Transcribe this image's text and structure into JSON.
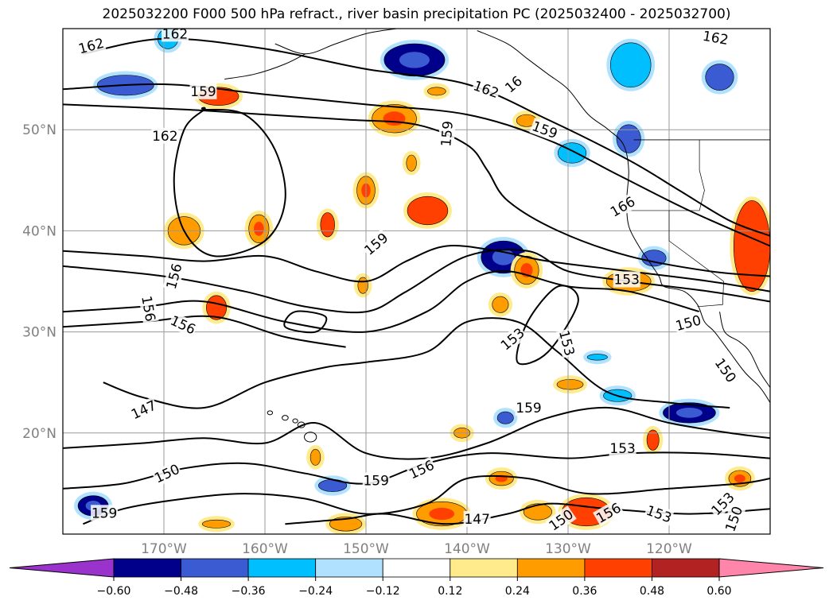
{
  "title": "2025032200 F000 500 hPa refract., river basin precipitation PC (2025032400 - 2025032700)",
  "map": {
    "lat_range": [
      10,
      60
    ],
    "lon_range": [
      -180,
      -110
    ],
    "lat_ticks": [
      {
        "value": 20,
        "label": "20°N"
      },
      {
        "value": 30,
        "label": "30°N"
      },
      {
        "value": 40,
        "label": "40°N"
      },
      {
        "value": 50,
        "label": "50°N"
      }
    ],
    "lon_ticks": [
      {
        "value": -170,
        "label": "170°W"
      },
      {
        "value": -160,
        "label": "160°W"
      },
      {
        "value": -150,
        "label": "150°W"
      },
      {
        "value": -140,
        "label": "140°W"
      },
      {
        "value": -130,
        "label": "130°W"
      },
      {
        "value": -120,
        "label": "120°W"
      }
    ],
    "grid": true,
    "contour_levels": [
      147,
      150,
      153,
      156,
      159,
      162
    ],
    "contour_labels": [
      {
        "text": "162",
        "lon": -177.2,
        "lat": 58.3,
        "rot": -15
      },
      {
        "text": "162",
        "lon": -168.9,
        "lat": 59.5,
        "rot": 0
      },
      {
        "text": "162",
        "lon": -169.9,
        "lat": 49.4,
        "rot": 0
      },
      {
        "text": "159",
        "lon": -166.1,
        "lat": 53.8,
        "rot": 0
      },
      {
        "text": "162",
        "lon": -138.1,
        "lat": 54.0,
        "rot": 20
      },
      {
        "text": "16",
        "lon": -135.4,
        "lat": 54.5,
        "rot": -40
      },
      {
        "text": "159",
        "lon": -132.3,
        "lat": 50.0,
        "rot": 20
      },
      {
        "text": "159",
        "lon": -142.0,
        "lat": 49.6,
        "rot": -85
      },
      {
        "text": "162",
        "lon": -115.4,
        "lat": 59.1,
        "rot": 10
      },
      {
        "text": "159",
        "lon": -149.0,
        "lat": 38.7,
        "rot": -40
      },
      {
        "text": "166",
        "lon": -124.6,
        "lat": 42.4,
        "rot": -30
      },
      {
        "text": "153",
        "lon": -124.2,
        "lat": 35.2,
        "rot": 0
      },
      {
        "text": "156",
        "lon": -169.0,
        "lat": 35.5,
        "rot": -75
      },
      {
        "text": "156",
        "lon": -171.5,
        "lat": 32.3,
        "rot": 80
      },
      {
        "text": "156",
        "lon": -168.1,
        "lat": 30.7,
        "rot": 25
      },
      {
        "text": "150",
        "lon": -118.1,
        "lat": 30.9,
        "rot": -15
      },
      {
        "text": "153",
        "lon": -135.5,
        "lat": 29.3,
        "rot": -40
      },
      {
        "text": "153",
        "lon": -130.1,
        "lat": 28.9,
        "rot": 75
      },
      {
        "text": "150",
        "lon": -114.4,
        "lat": 26.2,
        "rot": 55
      },
      {
        "text": "147",
        "lon": -172.0,
        "lat": 22.3,
        "rot": -25
      },
      {
        "text": "159",
        "lon": -133.9,
        "lat": 22.5,
        "rot": 0
      },
      {
        "text": "153",
        "lon": -124.6,
        "lat": 18.5,
        "rot": 0
      },
      {
        "text": "156",
        "lon": -144.5,
        "lat": 16.4,
        "rot": -25
      },
      {
        "text": "150",
        "lon": -169.7,
        "lat": 16.0,
        "rot": -25
      },
      {
        "text": "159",
        "lon": -149.0,
        "lat": 15.3,
        "rot": 0
      },
      {
        "text": "159",
        "lon": -175.9,
        "lat": 12.1,
        "rot": 0
      },
      {
        "text": "147",
        "lon": -139.0,
        "lat": 11.5,
        "rot": 0
      },
      {
        "text": "150",
        "lon": -130.7,
        "lat": 11.4,
        "rot": -35
      },
      {
        "text": "156",
        "lon": -126.0,
        "lat": 12.1,
        "rot": -30
      },
      {
        "text": "153",
        "lon": -121.0,
        "lat": 12.0,
        "rot": 20
      },
      {
        "text": "153",
        "lon": -114.7,
        "lat": 13.0,
        "rot": -45
      },
      {
        "text": "150",
        "lon": -113.6,
        "lat": 11.5,
        "rot": -70
      }
    ],
    "contour_paths": [
      [
        [
          -178,
          57.5
        ],
        [
          -170,
          59
        ],
        [
          -160,
          58
        ],
        [
          -150,
          56
        ],
        [
          -140,
          54.5
        ],
        [
          -132,
          51
        ],
        [
          -124,
          47
        ],
        [
          -119,
          44
        ],
        [
          -114,
          41
        ],
        [
          -110,
          39.5
        ]
      ],
      [
        [
          -180,
          54
        ],
        [
          -170,
          54.5
        ],
        [
          -160,
          53.5
        ],
        [
          -150,
          52.5
        ],
        [
          -140,
          51.5
        ],
        [
          -132,
          49
        ],
        [
          -125,
          45.5
        ],
        [
          -118,
          42
        ],
        [
          -110,
          38.5
        ]
      ],
      [
        [
          -180,
          52.5
        ],
        [
          -168,
          52
        ],
        [
          -160,
          51.5
        ],
        [
          -152,
          51
        ],
        [
          -145,
          50.5
        ],
        [
          -140,
          48.5
        ],
        [
          -138,
          46
        ],
        [
          -136,
          43
        ],
        [
          -131,
          40
        ],
        [
          -124,
          37.5
        ],
        [
          -116,
          36
        ],
        [
          -110,
          35.5
        ]
      ],
      [
        [
          -180,
          38
        ],
        [
          -172,
          37.5
        ],
        [
          -166,
          37
        ],
        [
          -160,
          37.5
        ],
        [
          -155,
          36
        ],
        [
          -150,
          35
        ],
        [
          -146,
          37
        ],
        [
          -142,
          38.5
        ],
        [
          -137,
          38
        ],
        [
          -132,
          37
        ],
        [
          -124,
          36
        ],
        [
          -116,
          35
        ],
        [
          -110,
          34
        ]
      ],
      [
        [
          -180,
          36.5
        ],
        [
          -170,
          35.5
        ],
        [
          -162,
          34
        ],
        [
          -156,
          32.5
        ],
        [
          -150,
          32
        ],
        [
          -146,
          34
        ],
        [
          -140,
          37.5
        ],
        [
          -134,
          38
        ],
        [
          -130,
          36
        ],
        [
          -124,
          35
        ],
        [
          -116,
          34
        ],
        [
          -110,
          33
        ]
      ],
      [
        [
          -180,
          32
        ],
        [
          -172,
          32.5
        ],
        [
          -166,
          33
        ],
        [
          -158,
          31
        ],
        [
          -150,
          30
        ],
        [
          -144,
          32
        ],
        [
          -140,
          35
        ],
        [
          -136,
          36
        ],
        [
          -130,
          34.5
        ],
        [
          -124,
          34
        ],
        [
          -117,
          32
        ]
      ],
      [
        [
          -180,
          30.5
        ],
        [
          -172,
          31
        ],
        [
          -165,
          31.5
        ],
        [
          -158,
          29.5
        ],
        [
          -152,
          28.5
        ]
      ],
      [
        [
          -176,
          25
        ],
        [
          -172,
          23.5
        ],
        [
          -166,
          22.5
        ],
        [
          -160,
          25
        ],
        [
          -154,
          26.5
        ],
        [
          -150,
          27
        ],
        [
          -144,
          28
        ],
        [
          -140,
          31
        ],
        [
          -135,
          31
        ],
        [
          -131,
          28
        ],
        [
          -126,
          24
        ],
        [
          -120,
          23
        ],
        [
          -114,
          22.5
        ]
      ],
      [
        [
          -180,
          18.5
        ],
        [
          -172,
          19
        ],
        [
          -166,
          19.5
        ],
        [
          -160,
          19
        ],
        [
          -155,
          21
        ],
        [
          -150,
          18
        ],
        [
          -144,
          17.5
        ],
        [
          -138,
          19
        ],
        [
          -132,
          21.5
        ],
        [
          -126,
          22.5
        ],
        [
          -120,
          21
        ],
        [
          -114,
          20
        ],
        [
          -110,
          19.5
        ]
      ],
      [
        [
          -180,
          14.5
        ],
        [
          -174,
          15
        ],
        [
          -168,
          16.5
        ],
        [
          -162,
          17
        ],
        [
          -156,
          16
        ],
        [
          -150,
          15
        ],
        [
          -144,
          17
        ],
        [
          -138,
          18
        ],
        [
          -130,
          17.5
        ],
        [
          -124,
          18
        ],
        [
          -117,
          18
        ],
        [
          -110,
          17.5
        ]
      ],
      [
        [
          -178,
          11
        ],
        [
          -174,
          12.5
        ],
        [
          -168,
          13.5
        ],
        [
          -162,
          14
        ],
        [
          -156,
          13.5
        ],
        [
          -150,
          12
        ],
        [
          -144,
          13
        ],
        [
          -140,
          15.5
        ],
        [
          -134,
          15.5
        ],
        [
          -128,
          14
        ],
        [
          -120,
          14.5
        ],
        [
          -113,
          15
        ],
        [
          -110,
          15.5
        ]
      ],
      [
        [
          -158,
          11
        ],
        [
          -152,
          11.5
        ],
        [
          -148,
          12
        ],
        [
          -142,
          11
        ],
        [
          -136,
          12
        ],
        [
          -132,
          13
        ],
        [
          -126,
          12.5
        ],
        [
          -118,
          12
        ],
        [
          -110,
          12.5
        ]
      ]
    ],
    "contour_loops": [
      [
        [
          -166,
          52
        ],
        [
          -162,
          51.5
        ],
        [
          -159,
          48
        ],
        [
          -158,
          43
        ],
        [
          -160,
          39
        ],
        [
          -165,
          37.5
        ],
        [
          -168,
          40
        ],
        [
          -169,
          45
        ],
        [
          -168,
          50
        ],
        [
          -166,
          52
        ]
      ],
      [
        [
          -135,
          27
        ],
        [
          -132,
          28
        ],
        [
          -129,
          33
        ],
        [
          -131,
          34.5
        ],
        [
          -134,
          31
        ]
      ],
      [
        [
          -158,
          30.5
        ],
        [
          -155,
          30
        ],
        [
          -154,
          31.5
        ],
        [
          -157,
          32
        ]
      ]
    ],
    "precip_blobs": [
      {
        "lon": -145.2,
        "lat": 56.9,
        "rx": 3.0,
        "ry": 1.6,
        "v": -0.5
      },
      {
        "lon": -173.8,
        "lat": 54.4,
        "rx": 2.8,
        "ry": 1.0,
        "v": -0.4
      },
      {
        "lon": -169.6,
        "lat": 59.0,
        "rx": 1.0,
        "ry": 1.0,
        "v": -0.3
      },
      {
        "lon": -123.8,
        "lat": 56.4,
        "rx": 2.0,
        "ry": 2.2,
        "v": -0.3
      },
      {
        "lon": -115.0,
        "lat": 55.2,
        "rx": 1.4,
        "ry": 1.3,
        "v": -0.36
      },
      {
        "lon": -124.0,
        "lat": 49.1,
        "rx": 1.2,
        "ry": 1.4,
        "v": -0.45
      },
      {
        "lon": -129.6,
        "lat": 47.7,
        "rx": 1.4,
        "ry": 1.0,
        "v": -0.3
      },
      {
        "lon": -136.4,
        "lat": 37.4,
        "rx": 2.2,
        "ry": 1.6,
        "v": -0.55
      },
      {
        "lon": -121.5,
        "lat": 37.3,
        "rx": 1.2,
        "ry": 0.8,
        "v": -0.36
      },
      {
        "lon": -125.1,
        "lat": 23.7,
        "rx": 1.4,
        "ry": 0.6,
        "v": -0.3
      },
      {
        "lon": -118.0,
        "lat": 22.0,
        "rx": 2.6,
        "ry": 1.0,
        "v": -0.5
      },
      {
        "lon": -177.0,
        "lat": 12.8,
        "rx": 1.5,
        "ry": 1.0,
        "v": -0.5
      },
      {
        "lon": -153.3,
        "lat": 14.8,
        "rx": 1.4,
        "ry": 0.6,
        "v": -0.36
      },
      {
        "lon": -127.1,
        "lat": 27.5,
        "rx": 1.0,
        "ry": 0.3,
        "v": -0.3
      },
      {
        "lon": -136.2,
        "lat": 21.5,
        "rx": 0.8,
        "ry": 0.6,
        "v": -0.36
      },
      {
        "lon": -164.6,
        "lat": 53.3,
        "rx": 2.0,
        "ry": 0.9,
        "v": 0.4
      },
      {
        "lon": -147.2,
        "lat": 51.1,
        "rx": 2.2,
        "ry": 1.4,
        "v": 0.36
      },
      {
        "lon": -143.9,
        "lat": 42.0,
        "rx": 2.0,
        "ry": 1.4,
        "v": 0.38
      },
      {
        "lon": -150.0,
        "lat": 44.0,
        "rx": 0.9,
        "ry": 1.4,
        "v": 0.36
      },
      {
        "lon": -168.0,
        "lat": 40.0,
        "rx": 1.6,
        "ry": 1.4,
        "v": 0.26
      },
      {
        "lon": -160.6,
        "lat": 40.2,
        "rx": 1.0,
        "ry": 1.4,
        "v": 0.36
      },
      {
        "lon": -153.8,
        "lat": 40.6,
        "rx": 0.7,
        "ry": 1.2,
        "v": 0.38
      },
      {
        "lon": -164.8,
        "lat": 32.4,
        "rx": 1.0,
        "ry": 1.2,
        "v": 0.4
      },
      {
        "lon": -134.1,
        "lat": 36.1,
        "rx": 1.2,
        "ry": 1.4,
        "v": 0.36
      },
      {
        "lon": -124.0,
        "lat": 35.0,
        "rx": 2.2,
        "ry": 1.0,
        "v": 0.3
      },
      {
        "lon": -111.8,
        "lat": 38.5,
        "rx": 1.8,
        "ry": 4.5,
        "v": 0.4
      },
      {
        "lon": -136.7,
        "lat": 32.7,
        "rx": 0.8,
        "ry": 0.8,
        "v": 0.3
      },
      {
        "lon": -129.8,
        "lat": 24.8,
        "rx": 1.3,
        "ry": 0.5,
        "v": 0.3
      },
      {
        "lon": -121.6,
        "lat": 19.3,
        "rx": 0.6,
        "ry": 1.0,
        "v": 0.4
      },
      {
        "lon": -140.5,
        "lat": 20.0,
        "rx": 0.8,
        "ry": 0.5,
        "v": 0.26
      },
      {
        "lon": -136.6,
        "lat": 15.5,
        "rx": 1.2,
        "ry": 0.7,
        "v": 0.36
      },
      {
        "lon": -128.2,
        "lat": 12.2,
        "rx": 2.4,
        "ry": 1.4,
        "v": 0.4
      },
      {
        "lon": -142.5,
        "lat": 12.0,
        "rx": 2.5,
        "ry": 1.2,
        "v": 0.36
      },
      {
        "lon": -133.0,
        "lat": 12.2,
        "rx": 1.4,
        "ry": 0.8,
        "v": 0.26
      },
      {
        "lon": -113.0,
        "lat": 15.5,
        "rx": 1.1,
        "ry": 0.8,
        "v": 0.36
      },
      {
        "lon": -152.0,
        "lat": 11.0,
        "rx": 1.6,
        "ry": 0.7,
        "v": 0.3
      },
      {
        "lon": -155.0,
        "lat": 17.6,
        "rx": 0.5,
        "ry": 0.8,
        "v": 0.3
      },
      {
        "lon": -164.8,
        "lat": 11.0,
        "rx": 1.4,
        "ry": 0.4,
        "v": 0.26
      },
      {
        "lon": -134.1,
        "lat": 50.9,
        "rx": 1.0,
        "ry": 0.6,
        "v": 0.26
      },
      {
        "lon": -145.5,
        "lat": 46.7,
        "rx": 0.5,
        "ry": 0.8,
        "v": 0.3
      },
      {
        "lon": -150.3,
        "lat": 34.6,
        "rx": 0.5,
        "ry": 0.8,
        "v": 0.3
      },
      {
        "lon": -143.0,
        "lat": 53.8,
        "rx": 0.9,
        "ry": 0.4,
        "v": 0.26
      }
    ]
  },
  "colorbar": {
    "ticks": [
      "−0.60",
      "−0.48",
      "−0.36",
      "−0.24",
      "−0.12",
      "0.12",
      "0.24",
      "0.36",
      "0.48",
      "0.60"
    ],
    "bins": [
      {
        "color": "#9933cc"
      },
      {
        "color": "#00008b"
      },
      {
        "color": "#3a5bd1"
      },
      {
        "color": "#00bfff"
      },
      {
        "color": "#b0e2ff"
      },
      {
        "color": "#ffffff"
      },
      {
        "color": "#ffea8c"
      },
      {
        "color": "#ff9d00"
      },
      {
        "color": "#ff4000"
      },
      {
        "color": "#b22222"
      },
      {
        "color": "#ff85aa"
      }
    ]
  }
}
